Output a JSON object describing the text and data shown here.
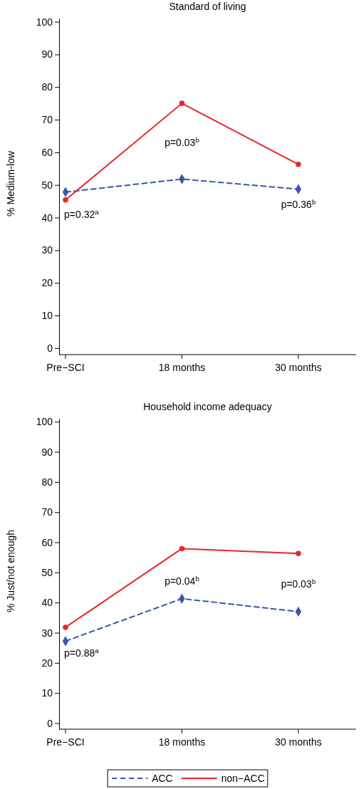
{
  "chart_data": [
    {
      "type": "line",
      "title": "Standard of living",
      "ylabel": "% Medium-low",
      "categories": [
        "Pre−SCI",
        "18 months",
        "30 months"
      ],
      "series": [
        {
          "color": "#3a56a8",
          "values": [
            47.8,
            51.8,
            48.7
          ],
          "marker": "diamond",
          "line_style": "dashed"
        },
        {
          "color": "#e8262b",
          "values": [
            45.4,
            75,
            56.3
          ],
          "marker": "circle",
          "line_style": "solid"
        }
      ],
      "ylim": [
        -2,
        101
      ],
      "yticks": [
        0,
        10,
        20,
        30,
        40,
        50,
        60,
        70,
        80,
        90,
        100
      ],
      "grid": false,
      "legend": false,
      "annotations": [
        "p=0.32$^{a}$",
        "p=0.03$^{b}$",
        "p=0.36$^{b}$"
      ]
    },
    {
      "type": "line",
      "title": "Household income adequacy",
      "ylabel": "% Just/not enough",
      "categories": [
        "Pre−SCI",
        "18 months",
        "30 months"
      ],
      "series": [
        {
          "name": "ACC",
          "color": "#3a56a8",
          "values": [
            27.2,
            41.3,
            37
          ],
          "marker": "diamond",
          "line_style": "dashed"
        },
        {
          "name": "non−ACC",
          "color": "#e8262b",
          "values": [
            31.8,
            57.9,
            56.3
          ],
          "marker": "circle",
          "line_style": "solid"
        }
      ],
      "ylim": [
        -2,
        101
      ],
      "yticks": [
        0,
        10,
        20,
        30,
        40,
        50,
        60,
        70,
        80,
        90,
        100
      ],
      "grid": false,
      "legend": "bottom",
      "annotations": [
        "p=0.88$^{a}$",
        "p=0.04$^{b}$",
        "p=0.03$^{b}$"
      ]
    }
  ]
}
